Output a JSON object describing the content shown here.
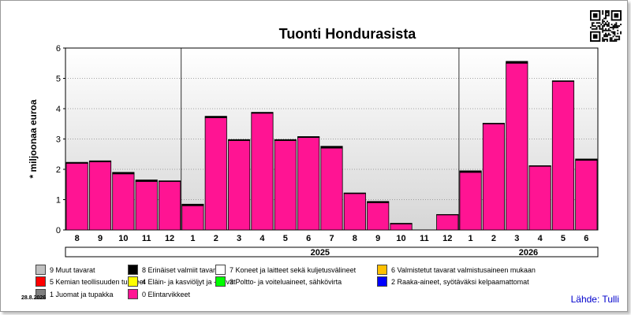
{
  "chart_data": {
    "type": "bar",
    "title": "Tuonti Hondurasista",
    "ylabel": "* miljoonaa euroa",
    "ylim": [
      0,
      6
    ],
    "yticks": [
      0,
      1,
      2,
      3,
      4,
      5,
      6
    ],
    "categories": [
      "8",
      "9",
      "10",
      "11",
      "12",
      "1",
      "2",
      "3",
      "4",
      "5",
      "6",
      "7",
      "8",
      "9",
      "10",
      "11",
      "12",
      "1",
      "2",
      "3",
      "4",
      "5",
      "6"
    ],
    "year_groups": [
      {
        "label": "2025",
        "start": 5,
        "end": 16
      },
      {
        "label": "2026",
        "start": 17,
        "end": 22
      }
    ],
    "series": [
      {
        "name": "0 Elintarvikkeet",
        "color": "#ff1493",
        "values": [
          2.2,
          2.25,
          1.85,
          1.6,
          1.6,
          0.8,
          3.7,
          2.95,
          3.85,
          2.95,
          3.05,
          2.7,
          1.2,
          0.9,
          0.2,
          0.0,
          0.5,
          1.9,
          3.5,
          5.5,
          2.1,
          4.9,
          2.3
        ]
      },
      {
        "name": "8 Erinäiset valmiit tavarat",
        "color": "#000000",
        "values": [
          0.03,
          0.03,
          0.05,
          0.05,
          0.02,
          0.05,
          0.05,
          0.03,
          0.03,
          0.03,
          0.03,
          0.06,
          0.02,
          0.04,
          0.02,
          0.0,
          0.01,
          0.05,
          0.02,
          0.06,
          0.02,
          0.02,
          0.04
        ]
      }
    ],
    "legend": [
      {
        "label": "9 Muut tavarat",
        "color": "#c0c0c0"
      },
      {
        "label": "8 Erinäiset valmiit tavarat",
        "color": "#000000"
      },
      {
        "label": "7 Koneet ja laitteet sekä kuljetusvälineet",
        "color": "#ffffff"
      },
      {
        "label": "6 Valmistetut tavarat valmistusaineen mukaan",
        "color": "#ffc000"
      },
      {
        "label": "5 Kemian teollisuuden tuotteet",
        "color": "#ff0000"
      },
      {
        "label": "4 Eläin- ja kasviöljyt ja -rasvat",
        "color": "#ffff00"
      },
      {
        "label": "3 Poltto- ja voiteluaineet, sähkövirta",
        "color": "#00ff00"
      },
      {
        "label": "2 Raaka-aineet, syötäväksi kelpaamattomat",
        "color": "#0000ff"
      },
      {
        "label": "1 Juomat ja tupakka",
        "color": "#808080"
      },
      {
        "label": "0 Elintarvikkeet",
        "color": "#ff1493"
      }
    ],
    "legend_placement": "bottom",
    "grid": true
  },
  "source": "Lähde: Tulli",
  "date": "28.8.2026"
}
